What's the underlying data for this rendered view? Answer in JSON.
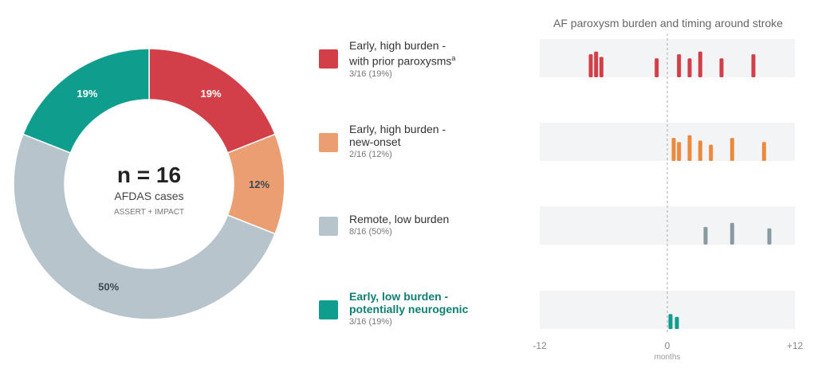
{
  "chart_data": [
    {
      "type": "pie",
      "donut": true,
      "center": {
        "title": "n = 16",
        "subtitle": "AFDAS cases",
        "note": "ASSERT + IMPACT"
      },
      "slices": [
        {
          "label": "19%",
          "value": 19,
          "color": "#d33f49"
        },
        {
          "label": "12%",
          "value": 12,
          "color": "#eb9e72"
        },
        {
          "label": "50%",
          "value": 50,
          "color": "#b8c4cb"
        },
        {
          "label": "19%",
          "value": 19,
          "color": "#0f9e8d"
        }
      ]
    },
    {
      "type": "bar",
      "title": "AF paroxysm burden and timing around stroke",
      "xlabel": "months",
      "xlim": [
        -12,
        12
      ],
      "xticks": [
        "-12",
        "0",
        "+12"
      ],
      "rows": [
        {
          "color": "#d33f49",
          "bars": [
            {
              "x": -7.2,
              "h": 0.85
            },
            {
              "x": -6.7,
              "h": 0.95
            },
            {
              "x": -6.2,
              "h": 0.75
            },
            {
              "x": -1.0,
              "h": 0.7
            },
            {
              "x": 1.1,
              "h": 0.85
            },
            {
              "x": 2.1,
              "h": 0.7
            },
            {
              "x": 3.1,
              "h": 0.95
            },
            {
              "x": 5.1,
              "h": 0.7
            },
            {
              "x": 8.1,
              "h": 0.85
            }
          ]
        },
        {
          "color": "#eb8a3e",
          "bars": [
            {
              "x": 0.6,
              "h": 0.85
            },
            {
              "x": 1.1,
              "h": 0.7
            },
            {
              "x": 2.1,
              "h": 0.95
            },
            {
              "x": 3.1,
              "h": 0.75
            },
            {
              "x": 4.1,
              "h": 0.6
            },
            {
              "x": 6.1,
              "h": 0.85
            },
            {
              "x": 9.1,
              "h": 0.7
            }
          ]
        },
        {
          "color": "#8a9aa3",
          "bars": [
            {
              "x": 3.6,
              "h": 0.65
            },
            {
              "x": 6.1,
              "h": 0.8
            },
            {
              "x": 9.6,
              "h": 0.6
            }
          ]
        },
        {
          "color": "#0f9e8d",
          "bars": [
            {
              "x": 0.3,
              "h": 0.55
            },
            {
              "x": 0.9,
              "h": 0.45
            }
          ]
        }
      ]
    }
  ],
  "legend": [
    {
      "line1": "Early, high burden -",
      "line2": "with prior paroxysms",
      "sup": "a",
      "count": "3/16 (19%)",
      "color": "#d33f49"
    },
    {
      "line1": "Early, high burden -",
      "line2": "new-onset",
      "sup": "",
      "count": "2/16 (12%)",
      "color": "#eb9e72"
    },
    {
      "line1": "Remote, low burden",
      "line2": "",
      "sup": "",
      "count": "8/16 (50%)",
      "color": "#b8c4cb"
    },
    {
      "line1": "Early, low burden -",
      "line2": "potentially neurogenic",
      "sup": "",
      "count": "3/16 (19%)",
      "color": "#0f9e8d"
    }
  ]
}
